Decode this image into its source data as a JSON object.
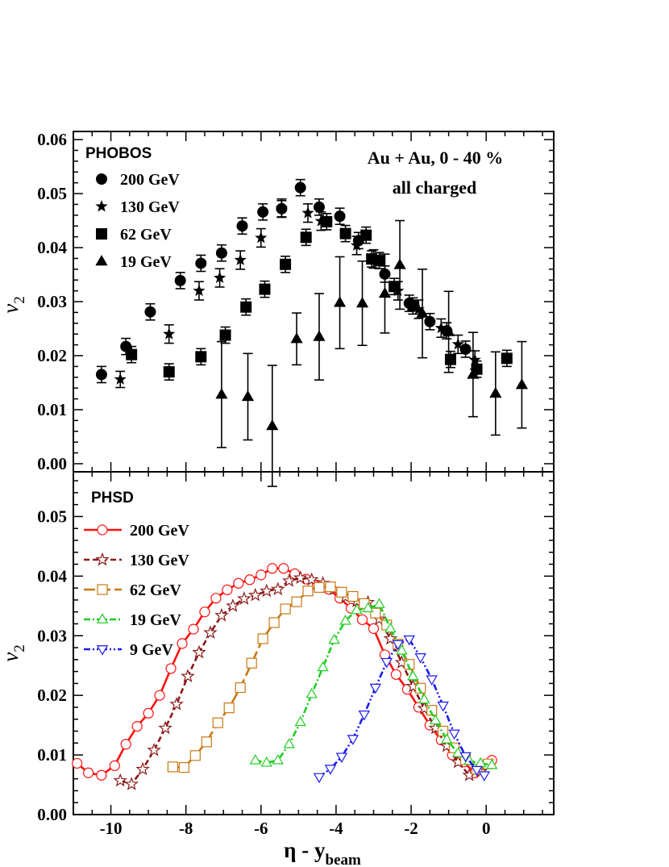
{
  "colors": {
    "axis": "#000000",
    "red": "#ff1010",
    "darkred": "#8b1a1a",
    "orange": "#c87814",
    "green": "#22cc22",
    "blue": "#1a1aee"
  },
  "x_axis": {
    "label_main": "η - y",
    "label_sub": "beam",
    "ticks": [
      "-10",
      "-8",
      "-6",
      "-4",
      "-2",
      "0"
    ]
  },
  "chart_data": [
    {
      "type": "scatter",
      "panel": "top",
      "ylabel_main": "v",
      "ylabel_sub": "2",
      "title": "PHOBOS",
      "annotation_lines": [
        "Au + Au, 0 - 40 %",
        "all charged"
      ],
      "xlim": [
        -11,
        1.8
      ],
      "ylim": [
        -0.0015,
        0.0615
      ],
      "yticks": [
        "0.00",
        "0.01",
        "0.02",
        "0.03",
        "0.04",
        "0.05",
        "0.06"
      ],
      "legend_position": "top-left",
      "series": [
        {
          "name": "200 GeV",
          "marker": "circle",
          "points": [
            [
              -10.25,
              0.0165,
              0.0015
            ],
            [
              -9.6,
              0.0217,
              0.0015
            ],
            [
              -8.95,
              0.0281,
              0.0015
            ],
            [
              -8.15,
              0.0339,
              0.0015
            ],
            [
              -7.6,
              0.0371,
              0.0015
            ],
            [
              -7.05,
              0.039,
              0.0015
            ],
            [
              -6.5,
              0.044,
              0.0015
            ],
            [
              -5.95,
              0.0466,
              0.0015
            ],
            [
              -5.45,
              0.0472,
              0.0015
            ],
            [
              -4.95,
              0.0511,
              0.0015
            ],
            [
              -4.45,
              0.0475,
              0.0015
            ],
            [
              -3.9,
              0.0458,
              0.0015
            ],
            [
              -3.4,
              0.0413,
              0.0015
            ],
            [
              -2.7,
              0.0351,
              0.0015
            ],
            [
              -2.05,
              0.0297,
              0.0015
            ],
            [
              -1.5,
              0.0263,
              0.0015
            ],
            [
              -1.05,
              0.0246,
              0.0015
            ],
            [
              -0.55,
              0.0212,
              0.0015
            ]
          ]
        },
        {
          "name": "130 GeV",
          "marker": "star",
          "points": [
            [
              -9.75,
              0.0156,
              0.0015
            ],
            [
              -8.45,
              0.024,
              0.0017
            ],
            [
              -7.65,
              0.032,
              0.0017
            ],
            [
              -7.1,
              0.0344,
              0.0017
            ],
            [
              -6.55,
              0.0377,
              0.0017
            ],
            [
              -6.0,
              0.0418,
              0.0017
            ],
            [
              -5.45,
              0.0473,
              0.0017
            ],
            [
              -4.75,
              0.0464,
              0.0017
            ],
            [
              -4.4,
              0.0449,
              0.0017
            ],
            [
              -3.45,
              0.0404,
              0.0017
            ],
            [
              -3.0,
              0.0379,
              0.0017
            ],
            [
              -2.35,
              0.032,
              0.0017
            ],
            [
              -1.8,
              0.0286,
              0.0017
            ],
            [
              -1.2,
              0.0251,
              0.0017
            ],
            [
              -0.75,
              0.0221,
              0.0017
            ],
            [
              -0.3,
              0.0192,
              0.0017
            ]
          ]
        },
        {
          "name": "62 GeV",
          "marker": "square",
          "points": [
            [
              -9.45,
              0.0202,
              0.0015
            ],
            [
              -8.45,
              0.017,
              0.0015
            ],
            [
              -7.6,
              0.0198,
              0.0015
            ],
            [
              -6.95,
              0.0238,
              0.0015
            ],
            [
              -6.4,
              0.029,
              0.0015
            ],
            [
              -5.9,
              0.0323,
              0.0015
            ],
            [
              -5.35,
              0.0369,
              0.0015
            ],
            [
              -4.8,
              0.0419,
              0.0015
            ],
            [
              -4.25,
              0.0448,
              0.0015
            ],
            [
              -3.75,
              0.0426,
              0.0015
            ],
            [
              -3.2,
              0.0423,
              0.0015
            ],
            [
              -3.05,
              0.0379,
              0.0015
            ],
            [
              -2.85,
              0.0376,
              0.0015
            ],
            [
              -2.45,
              0.0328,
              0.0015
            ],
            [
              -1.95,
              0.0292,
              0.0015
            ],
            [
              -0.95,
              0.0193,
              0.0015
            ],
            [
              -0.25,
              0.0175,
              0.0015
            ],
            [
              0.55,
              0.0195,
              0.0015
            ]
          ]
        },
        {
          "name": "19 GeV",
          "marker": "triangle",
          "points": [
            [
              -7.05,
              0.0128,
              0.0098
            ],
            [
              -6.35,
              0.0124,
              0.008
            ],
            [
              -5.7,
              0.007,
              0.0112
            ],
            [
              -5.05,
              0.0231,
              0.0048
            ],
            [
              -4.45,
              0.0235,
              0.008
            ],
            [
              -3.9,
              0.0298,
              0.0085
            ],
            [
              -3.3,
              0.0297,
              0.0078
            ],
            [
              -2.7,
              0.0315,
              0.0073
            ],
            [
              -2.3,
              0.0368,
              0.0082
            ],
            [
              -1.7,
              0.0278,
              0.0082
            ],
            [
              -1.0,
              0.0244,
              0.0075
            ],
            [
              -0.35,
              0.0165,
              0.0078
            ],
            [
              0.25,
              0.013,
              0.0077
            ],
            [
              0.95,
              0.0146,
              0.008
            ]
          ]
        }
      ]
    },
    {
      "type": "line",
      "panel": "bottom",
      "ylabel_main": "v",
      "ylabel_sub": "2",
      "title": "PHSD",
      "xlim": [
        -11,
        1.8
      ],
      "ylim": [
        0.0,
        0.0575
      ],
      "yticks": [
        "0.00",
        "0.01",
        "0.02",
        "0.03",
        "0.04",
        "0.05"
      ],
      "legend_position": "top-left",
      "series": [
        {
          "name": "200 GeV",
          "marker": "circle-open",
          "dash": "solid",
          "color": "red",
          "x": [
            -10.9,
            -10.6,
            -10.25,
            -9.9,
            -9.6,
            -9.3,
            -9.0,
            -8.7,
            -8.4,
            -8.1,
            -7.8,
            -7.5,
            -7.2,
            -6.9,
            -6.6,
            -6.3,
            -6.0,
            -5.7,
            -5.4,
            -5.1,
            -4.8,
            -4.5,
            -4.2,
            -3.9,
            -3.6,
            -3.3,
            -3.0,
            -2.7,
            -2.4,
            -2.1,
            -1.8,
            -1.5,
            -1.2,
            -0.9,
            -0.6,
            -0.3,
            0.15
          ],
          "y": [
            0.0086,
            0.007,
            0.0066,
            0.0082,
            0.0118,
            0.0148,
            0.017,
            0.02,
            0.0245,
            0.0287,
            0.0311,
            0.034,
            0.0363,
            0.0377,
            0.0388,
            0.0394,
            0.0402,
            0.0413,
            0.0413,
            0.0404,
            0.0395,
            0.0385,
            0.0378,
            0.0363,
            0.0346,
            0.0327,
            0.0312,
            0.0268,
            0.0235,
            0.021,
            0.018,
            0.015,
            0.0125,
            0.01,
            0.0088,
            0.007,
            0.0091
          ]
        },
        {
          "name": "130 GeV",
          "marker": "star-open",
          "dash": "dashed",
          "color": "darkred",
          "x": [
            -9.75,
            -9.45,
            -9.15,
            -8.85,
            -8.55,
            -8.25,
            -7.95,
            -7.65,
            -7.35,
            -7.05,
            -6.75,
            -6.45,
            -6.15,
            -5.85,
            -5.55,
            -5.25,
            -4.95,
            -4.65,
            -4.35,
            -4.05,
            -3.75,
            -3.45,
            -3.15,
            -2.85,
            -2.55,
            -2.25,
            -1.95,
            -1.65,
            -1.35,
            -1.05,
            -0.75,
            -0.45,
            -0.15
          ],
          "y": [
            0.0057,
            0.0051,
            0.0076,
            0.0108,
            0.0145,
            0.0185,
            0.0232,
            0.0272,
            0.0305,
            0.0334,
            0.035,
            0.0362,
            0.0368,
            0.0375,
            0.0378,
            0.0392,
            0.0397,
            0.0394,
            0.0388,
            0.0378,
            0.0365,
            0.0358,
            0.0356,
            0.0328,
            0.0295,
            0.0255,
            0.0215,
            0.0178,
            0.0145,
            0.0115,
            0.0088,
            0.0066,
            0.0072
          ]
        },
        {
          "name": "62 GeV",
          "marker": "square-open",
          "dash": "longdash",
          "color": "orange",
          "x": [
            -8.35,
            -8.05,
            -7.75,
            -7.45,
            -7.15,
            -6.85,
            -6.55,
            -6.25,
            -5.95,
            -5.65,
            -5.35,
            -5.05,
            -4.75,
            -4.45,
            -4.15,
            -3.85,
            -3.55,
            -3.25,
            -2.95,
            -2.65,
            -2.35,
            -2.05,
            -1.75,
            -1.45,
            -1.15,
            -0.85,
            -0.55,
            -0.25,
            0.05
          ],
          "y": [
            0.008,
            0.0079,
            0.0099,
            0.0122,
            0.0154,
            0.0179,
            0.0213,
            0.0254,
            0.0295,
            0.0322,
            0.0345,
            0.0357,
            0.0375,
            0.0381,
            0.0382,
            0.0373,
            0.0366,
            0.0354,
            0.0338,
            0.0318,
            0.0286,
            0.0252,
            0.0212,
            0.0175,
            0.014,
            0.0112,
            0.0092,
            0.0076,
            0.0085
          ]
        },
        {
          "name": "19 GeV",
          "marker": "triangle-open",
          "dash": "dashdot",
          "color": "green",
          "x": [
            -6.15,
            -5.85,
            -5.55,
            -5.25,
            -4.95,
            -4.65,
            -4.35,
            -4.05,
            -3.75,
            -3.45,
            -3.15,
            -2.85,
            -2.55,
            -2.25,
            -1.95,
            -1.65,
            -1.35,
            -1.05,
            -0.75,
            -0.45,
            -0.15,
            0.15
          ],
          "y": [
            0.0091,
            0.0087,
            0.0091,
            0.0118,
            0.0155,
            0.0202,
            0.0247,
            0.0293,
            0.0325,
            0.0343,
            0.0346,
            0.0353,
            0.0312,
            0.0275,
            0.0232,
            0.0193,
            0.0158,
            0.0126,
            0.0103,
            0.009,
            0.0086,
            0.0083
          ]
        },
        {
          "name": "9 GeV",
          "marker": "triangle-down-open",
          "dash": "dashdotdot",
          "color": "blue",
          "x": [
            -4.45,
            -4.15,
            -3.85,
            -3.55,
            -3.25,
            -2.95,
            -2.65,
            -2.35,
            -2.05,
            -1.75,
            -1.45,
            -1.15,
            -0.85,
            -0.55,
            -0.25,
            -0.05
          ],
          "y": [
            0.0063,
            0.0077,
            0.0097,
            0.0127,
            0.0168,
            0.0213,
            0.0256,
            0.0286,
            0.0294,
            0.0264,
            0.0227,
            0.0183,
            0.0136,
            0.0098,
            0.0075,
            0.0066
          ]
        }
      ]
    }
  ]
}
